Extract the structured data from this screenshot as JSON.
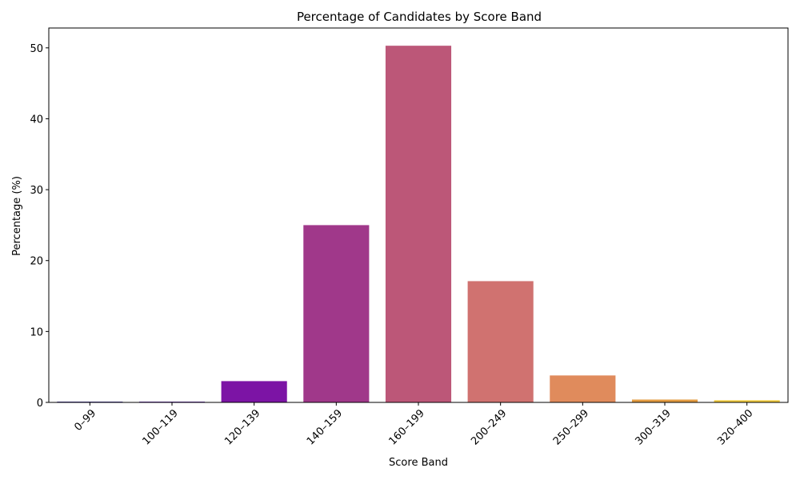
{
  "chart_data": {
    "type": "bar",
    "title": "Percentage of Candidates by Score Band",
    "xlabel": "Score Band",
    "ylabel": "Percentage (%)",
    "categories": [
      "0–99",
      "100–119",
      "120–139",
      "140–159",
      "160–199",
      "200–249",
      "250–299",
      "300–319",
      "320–400"
    ],
    "values": [
      0.1,
      0.1,
      3.0,
      25.0,
      50.3,
      17.1,
      3.8,
      0.4,
      0.3
    ],
    "colors": [
      "#1f0c8a",
      "#4c03a4",
      "#7c14a5",
      "#a0388a",
      "#bc5778",
      "#d07270",
      "#e08b5c",
      "#e39b40",
      "#f0c93a"
    ],
    "ylim": [
      0,
      52.8
    ],
    "yticks": [
      0,
      10,
      20,
      30,
      40,
      50
    ],
    "grid": false,
    "legend": "none"
  }
}
